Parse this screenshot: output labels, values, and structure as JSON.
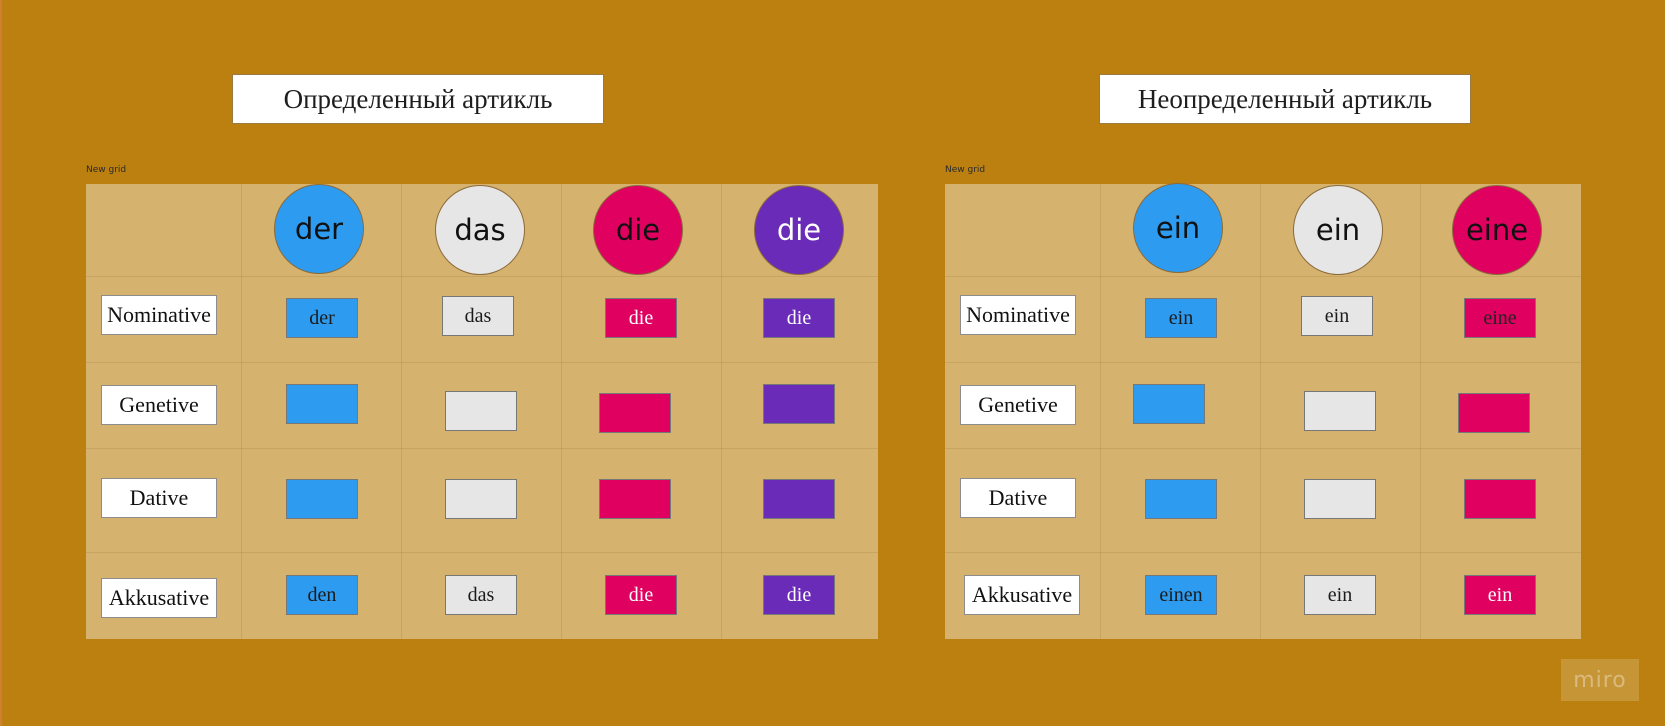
{
  "left_panel": {
    "title": "Определенный артикль",
    "grid_caption": "New grid",
    "headers": [
      {
        "text": "der",
        "color": "#2d9bf0"
      },
      {
        "text": "das",
        "color": "#e6e6e6"
      },
      {
        "text": "die",
        "color": "#e0005f"
      },
      {
        "text": "die",
        "color": "#6a2bb8"
      }
    ],
    "cases": [
      "Nominative",
      "Genetive",
      "Dative",
      "Akkusative"
    ],
    "rows": [
      [
        "der",
        "das",
        "die",
        "die"
      ],
      [
        "",
        "",
        "",
        ""
      ],
      [
        "",
        "",
        "",
        ""
      ],
      [
        "den",
        "das",
        "die",
        "die"
      ]
    ]
  },
  "right_panel": {
    "title": "Неопределенный артикль",
    "grid_caption": "New grid",
    "headers": [
      {
        "text": "ein",
        "color": "#2d9bf0"
      },
      {
        "text": "ein",
        "color": "#e6e6e6"
      },
      {
        "text": "eine",
        "color": "#e0005f"
      }
    ],
    "cases": [
      "Nominative",
      "Genetive",
      "Dative",
      "Akkusative"
    ],
    "rows": [
      [
        "ein",
        "ein",
        "eine"
      ],
      [
        "",
        "",
        ""
      ],
      [
        "",
        "",
        ""
      ],
      [
        "einen",
        "ein",
        "ein"
      ]
    ]
  },
  "watermark": "miro"
}
